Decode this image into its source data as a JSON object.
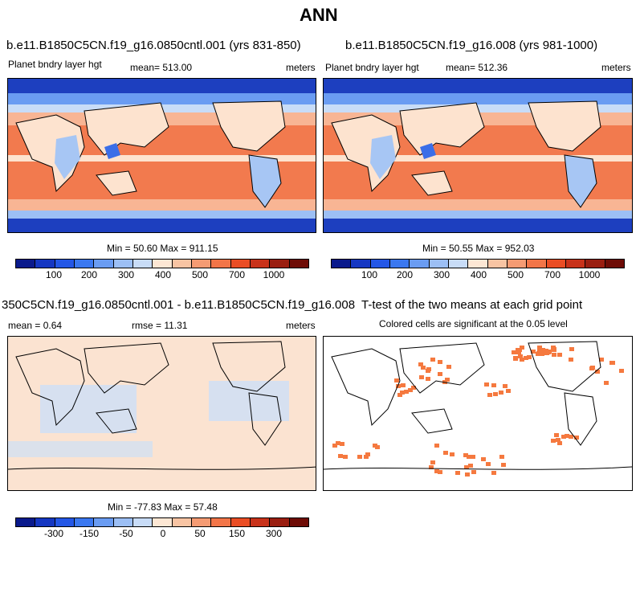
{
  "main_title": "ANN",
  "panels": {
    "p1": {
      "title": "b.e11.B1850C5CN.f19_g16.0850cntl.001 (yrs 831-850)",
      "variable": "Planet bndry layer hgt",
      "mean": "mean= 513.00",
      "units": "meters",
      "minmax": "Min =  50.60 Max = 911.15"
    },
    "p2": {
      "title": "b.e11.B1850C5CN.f19_g16.008 (yrs 981-1000)",
      "variable": "Planet bndry layer hgt",
      "mean": "mean= 512.36",
      "units": "meters",
      "minmax": "Min =  50.55 Max = 952.03"
    },
    "p3": {
      "title": "350C5CN.f19_g16.0850cntl.001 - b.e11.B1850C5CN.f19_g16.008",
      "mean": "mean =   0.64",
      "rmse": "rmse =  11.31",
      "units": "meters",
      "minmax": "Min = -77.83 Max =  57.48"
    },
    "p4": {
      "title": "T-test of the two means at each grid point",
      "subtitle": "Colored cells are significant at the 0.05 level"
    }
  },
  "colorbar": {
    "colors": [
      "#0a1a8c",
      "#1537c2",
      "#2457e6",
      "#3b78f0",
      "#6a9cf2",
      "#9cbff5",
      "#c8dcf7",
      "#fde7d4",
      "#f8c4a3",
      "#f59b73",
      "#f27548",
      "#ea4d24",
      "#c8321a",
      "#9a1e10",
      "#6e0c06"
    ],
    "abs_ticks": [
      "100",
      "200",
      "300",
      "400",
      "500",
      "700",
      "1000"
    ],
    "diff_ticks": [
      "-300",
      "-150",
      "-50",
      "0",
      "50",
      "150",
      "300"
    ]
  },
  "map_colors": {
    "ocean_warm": "#f27a4e",
    "ocean_mid": "#f8b594",
    "pale": "#fde3cf",
    "cool": "#a7c6f4",
    "cold": "#3b6ee8",
    "polar": "#1d3fbf",
    "diff_bg": "#fbe3d1",
    "diff_cool": "#cddff7",
    "sig": "#f5793f"
  }
}
